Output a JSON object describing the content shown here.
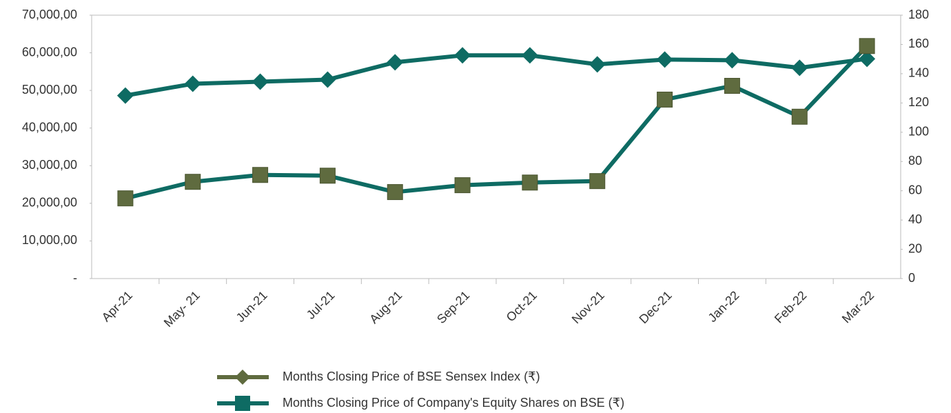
{
  "chart_data": {
    "type": "line",
    "categories": [
      "Apr-21",
      "May- 21",
      "Jun-21",
      "Jul-21",
      "Aug-21",
      "Sep-21",
      "Oct-21",
      "Nov-21",
      "Dec-21",
      "Jan-22",
      "Feb-22",
      "Mar-22"
    ],
    "series": [
      {
        "name": "Months Closing Price of BSE Sensex Index (₹)",
        "color": "#0e6b63",
        "legend_color": "#5f6b3f",
        "marker": "diamond",
        "values": [
          48632,
          51763,
          52316,
          52868,
          57474,
          59316,
          59316,
          56921,
          58211,
          58026,
          56000,
          58395
        ]
      },
      {
        "name": "Months Closing Price of Company's Equity Shares on BSE (₹)",
        "color": "#0e6b63",
        "marker_color": "#5f6b3f",
        "marker": "square",
        "axis": "y2",
        "values": [
          54.8,
          66.1,
          70.8,
          70.3,
          59.1,
          63.8,
          65.6,
          66.6,
          122.3,
          131.7,
          110.6,
          158.9
        ]
      }
    ],
    "ylim": [
      0,
      70000
    ],
    "yticks": [
      {
        "value": 0,
        "label": "-"
      },
      {
        "value": 10000,
        "label": "10,000,00"
      },
      {
        "value": 20000,
        "label": "20,000,00"
      },
      {
        "value": 30000,
        "label": "30,000,00"
      },
      {
        "value": 40000,
        "label": "40,000,00"
      },
      {
        "value": 50000,
        "label": "50,000,00"
      },
      {
        "value": 60000,
        "label": "60,000,00"
      },
      {
        "value": 70000,
        "label": "70,000,00"
      }
    ],
    "y2lim": [
      0,
      180
    ],
    "y2ticks": [
      0,
      20,
      40,
      60,
      80,
      100,
      120,
      140,
      160,
      180
    ]
  }
}
